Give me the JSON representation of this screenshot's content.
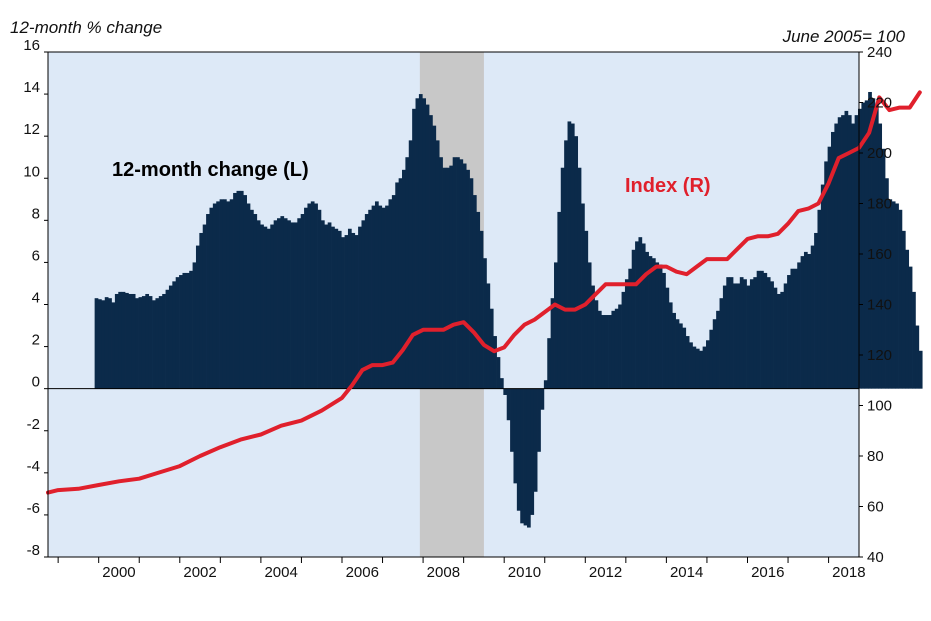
{
  "chart_data": {
    "type": "bar+line",
    "left_axis_title": "12-month % change",
    "right_axis_title": "June 2005= 100",
    "annotations": {
      "bars": "12-month change (L)",
      "line": "Index (R)"
    },
    "colors": {
      "bars": "#0b2a4a",
      "line": "#e0202c",
      "plot_bg": "#dde9f7",
      "recession": "#c8c8c8"
    },
    "left_axis": {
      "min": -8,
      "max": 16,
      "ticks": [
        "-8",
        "-6",
        "-4",
        "-2",
        "0",
        "2",
        "4",
        "6",
        "8",
        "10",
        "12",
        "14",
        "16"
      ]
    },
    "right_axis": {
      "min": 40,
      "max": 240,
      "ticks": [
        "40",
        "60",
        "80",
        "100",
        "120",
        "140",
        "160",
        "180",
        "200",
        "220",
        "240"
      ]
    },
    "x_axis": {
      "start": 1998.75,
      "end": 2018.75,
      "ticks": [
        "2000",
        "2002",
        "2004",
        "2006",
        "2008",
        "2010",
        "2012",
        "2014",
        "2016",
        "2018"
      ]
    },
    "recession": {
      "start": 2007.92,
      "end": 2009.5
    },
    "bars_12_month_change": {
      "start": 1999.9,
      "step": 0.0833,
      "values": [
        4.3,
        4.25,
        4.2,
        4.35,
        4.3,
        4.1,
        4.5,
        4.6,
        4.6,
        4.55,
        4.5,
        4.5,
        4.3,
        4.35,
        4.4,
        4.5,
        4.4,
        4.2,
        4.3,
        4.4,
        4.5,
        4.7,
        4.9,
        5.1,
        5.3,
        5.4,
        5.5,
        5.5,
        5.6,
        6.0,
        6.8,
        7.4,
        7.8,
        8.3,
        8.6,
        8.8,
        8.9,
        9.0,
        9.0,
        8.9,
        9.0,
        9.3,
        9.4,
        9.4,
        9.2,
        8.8,
        8.5,
        8.3,
        8.0,
        7.8,
        7.7,
        7.6,
        7.8,
        8.0,
        8.1,
        8.2,
        8.1,
        8.0,
        7.9,
        7.9,
        8.1,
        8.3,
        8.6,
        8.8,
        8.9,
        8.8,
        8.5,
        8.0,
        7.8,
        7.9,
        7.7,
        7.6,
        7.5,
        7.2,
        7.3,
        7.6,
        7.4,
        7.3,
        7.7,
        8.0,
        8.3,
        8.5,
        8.7,
        8.9,
        8.7,
        8.6,
        8.7,
        9.0,
        9.2,
        9.8,
        10.0,
        10.4,
        11.0,
        11.8,
        13.3,
        13.8,
        14.0,
        13.8,
        13.5,
        13.0,
        12.5,
        11.8,
        11.0,
        10.5,
        10.5,
        10.6,
        11.0,
        11.0,
        10.9,
        10.7,
        10.4,
        10.0,
        9.2,
        8.4,
        7.5,
        6.2,
        5.0,
        3.8,
        2.5,
        1.5,
        0.5,
        -0.3,
        -1.5,
        -3.0,
        -4.5,
        -5.8,
        -6.4,
        -6.5,
        -6.6,
        -6.0,
        -4.9,
        -3.0,
        -1.0,
        0.4,
        2.4,
        4.3,
        6.0,
        8.4,
        10.5,
        11.8,
        12.7,
        12.6,
        12.0,
        10.5,
        8.8,
        7.5,
        6.0,
        4.9,
        4.2,
        3.7,
        3.5,
        3.5,
        3.5,
        3.7,
        3.8,
        4.0,
        4.6,
        5.2,
        5.7,
        6.6,
        7.0,
        7.2,
        6.9,
        6.5,
        6.3,
        6.2,
        6.0,
        5.9,
        5.5,
        4.8,
        4.1,
        3.6,
        3.3,
        3.1,
        2.9,
        2.5,
        2.2,
        2.0,
        1.9,
        1.8,
        2.0,
        2.3,
        2.8,
        3.3,
        3.7,
        4.3,
        4.9,
        5.3,
        5.3,
        5.0,
        5.0,
        5.3,
        5.2,
        4.9,
        5.2,
        5.3,
        5.6,
        5.6,
        5.5,
        5.3,
        5.1,
        4.8,
        4.5,
        4.6,
        5.0,
        5.4,
        5.7,
        5.7,
        6.0,
        6.3,
        6.5,
        6.4,
        6.8,
        7.4,
        8.5,
        9.7,
        10.8,
        11.5,
        12.2,
        12.6,
        12.9,
        13.0,
        13.2,
        13.0,
        12.6,
        13.0,
        13.3,
        13.6,
        13.7,
        14.1,
        13.8,
        13.5,
        12.6,
        11.4,
        10.0,
        9.0,
        8.9,
        8.8,
        8.5,
        7.5,
        6.6,
        5.8,
        4.6,
        3.0,
        1.8
      ]
    },
    "index_line": {
      "points": [
        [
          1998.75,
          65.5
        ],
        [
          1999,
          66.5
        ],
        [
          1999.5,
          67
        ],
        [
          2000,
          68.5
        ],
        [
          2000.5,
          70
        ],
        [
          2001,
          71
        ],
        [
          2001.5,
          73.5
        ],
        [
          2002,
          76
        ],
        [
          2002.5,
          80
        ],
        [
          2003,
          83.5
        ],
        [
          2003.5,
          86.5
        ],
        [
          2004,
          88.5
        ],
        [
          2004.5,
          92
        ],
        [
          2005,
          94
        ],
        [
          2005.5,
          98
        ],
        [
          2006,
          103
        ],
        [
          2006.25,
          108
        ],
        [
          2006.5,
          114
        ],
        [
          2006.75,
          116
        ],
        [
          2007,
          116
        ],
        [
          2007.25,
          117
        ],
        [
          2007.5,
          122
        ],
        [
          2007.75,
          128
        ],
        [
          2008,
          130
        ],
        [
          2008.25,
          130
        ],
        [
          2008.5,
          130
        ],
        [
          2008.75,
          132
        ],
        [
          2009,
          133
        ],
        [
          2009.25,
          129
        ],
        [
          2009.5,
          124
        ],
        [
          2009.75,
          121.5
        ],
        [
          2010,
          123
        ],
        [
          2010.25,
          128
        ],
        [
          2010.5,
          132
        ],
        [
          2010.75,
          134
        ],
        [
          2011,
          137
        ],
        [
          2011.25,
          140
        ],
        [
          2011.5,
          138
        ],
        [
          2011.75,
          138
        ],
        [
          2012,
          140
        ],
        [
          2012.25,
          144
        ],
        [
          2012.5,
          148
        ],
        [
          2012.75,
          148
        ],
        [
          2013,
          148
        ],
        [
          2013.25,
          148
        ],
        [
          2013.5,
          152
        ],
        [
          2013.75,
          155
        ],
        [
          2014,
          155
        ],
        [
          2014.25,
          153
        ],
        [
          2014.5,
          152
        ],
        [
          2014.75,
          155
        ],
        [
          2015,
          158
        ],
        [
          2015.25,
          158
        ],
        [
          2015.5,
          158
        ],
        [
          2015.75,
          162
        ],
        [
          2016,
          166
        ],
        [
          2016.25,
          167
        ],
        [
          2016.5,
          167
        ],
        [
          2016.75,
          168
        ],
        [
          2017,
          172
        ],
        [
          2017.25,
          177
        ],
        [
          2017.5,
          178
        ],
        [
          2017.75,
          180
        ],
        [
          2018,
          188
        ],
        [
          2018.25,
          198
        ],
        [
          2018.5,
          200
        ],
        [
          2018.75,
          202
        ],
        [
          2019,
          208
        ],
        [
          2019.25,
          222
        ],
        [
          2019.5,
          217
        ],
        [
          2019.75,
          218
        ],
        [
          2020,
          218
        ],
        [
          2020.25,
          224
        ]
      ]
    }
  }
}
